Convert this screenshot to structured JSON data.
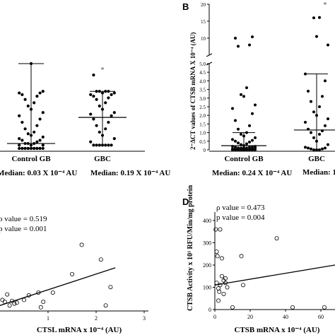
{
  "panels": {
    "b": {
      "letter": "B"
    },
    "d": {
      "letter": "D"
    }
  },
  "medians": {
    "a": "Median: 0.03 X 10⁻⁴ AU",
    "a_median_2": "Median: 0.19 X 10⁻⁴ AU",
    "b": "Median: 0.24 X 10⁻⁴ AU",
    "b_median_2": "Median: 1."
  },
  "stats": {
    "c_rho": "ρ value = 0.519",
    "c_p": "p value = 0.001",
    "d_rho": "ρ value = 0.473",
    "d_p": "p value = 0.004"
  },
  "chart_data": [
    {
      "id": "A",
      "type": "scatter",
      "categories": [
        "Control GB",
        "GBC"
      ],
      "series": [
        {
          "values": [
            [
              0.0,
              0.0,
              0.0,
              0.0,
              0.0,
              0.0,
              0.0,
              0.0,
              0.0,
              0.0,
              0.0,
              0.0,
              0.0,
              0.0,
              0.0,
              0.0,
              0.02,
              0.02,
              0.02,
              0.03,
              0.03,
              0.03,
              0.04,
              0.05,
              0.05,
              0.06,
              0.07,
              0.08,
              0.09,
              0.1,
              0.12,
              0.14,
              0.16,
              0.18,
              0.2,
              0.22,
              0.24,
              0.26,
              0.28,
              0.3,
              0.32,
              0.33,
              0.34,
              0.34,
              0.35,
              0.52
            ],
            [
              0.02,
              0.02,
              0.02,
              0.02,
              0.02,
              0.02,
              0.02,
              0.04,
              0.06,
              0.08,
              0.1,
              0.12,
              0.14,
              0.16,
              0.18,
              0.2,
              0.21,
              0.22,
              0.24,
              0.26,
              0.28,
              0.3,
              0.31,
              0.32,
              0.33,
              0.33,
              0.34,
              0.34,
              0.35,
              0.35,
              0.35,
              0.35,
              0.45
            ]
          ]
        }
      ],
      "median_bars": [
        0.03,
        0.19
      ],
      "whiskers": [
        [
          0.0,
          0.52
        ],
        [
          0.02,
          0.35
        ]
      ],
      "annotations": [
        "*"
      ]
    },
    {
      "id": "B",
      "type": "scatter",
      "ylabel": "2⁻ΔCT values of CTSB mRNA X 10⁻⁴ (AU)",
      "categories": [
        "Control GB",
        "GBC"
      ],
      "ylim_lower": [
        0,
        5
      ],
      "ylim_upper": [
        5,
        20
      ],
      "yticks_lower": [
        "0",
        "0.5",
        "1.0",
        "1.5",
        "2.0",
        "2.5",
        "3.0",
        "3.5",
        "4.0",
        "4.5",
        "5.0"
      ],
      "yticks_upper": [
        "10",
        "15",
        "20"
      ],
      "series": [
        {
          "values": [
            [
              0.0,
              0.0,
              0.0,
              0.0,
              0.0,
              0.0,
              0.0,
              0.0,
              0.0,
              0.0,
              0.0,
              0.0,
              0.0,
              0.05,
              0.05,
              0.05,
              0.05,
              0.1,
              0.1,
              0.1,
              0.1,
              0.1,
              0.15,
              0.15,
              0.15,
              0.2,
              0.2,
              0.25,
              0.3,
              0.35,
              0.4,
              0.45,
              0.5,
              0.55,
              0.6,
              0.7,
              0.8,
              0.9,
              1.0,
              1.2,
              1.4,
              1.7,
              2.1,
              2.4,
              2.6,
              3.1,
              3.2,
              3.6,
              7.6,
              8.0,
              10.0,
              10.4
            ],
            [
              0.0,
              0.0,
              0.0,
              0.05,
              0.05,
              0.1,
              0.1,
              0.15,
              0.3,
              0.5,
              0.7,
              0.9,
              1.0,
              1.1,
              1.2,
              1.4,
              1.6,
              1.8,
              2.0,
              2.2,
              2.5,
              2.8,
              3.1,
              3.4,
              4.0,
              4.4,
              8.0,
              10.5,
              16.0,
              16.1
            ]
          ]
        }
      ],
      "median_bars": [
        0.24,
        1.15
      ],
      "whiskers": [
        [
          0.0,
          1.0
        ],
        [
          0.0,
          4.4
        ]
      ],
      "annotations": [
        "*"
      ]
    },
    {
      "id": "C",
      "type": "scatter",
      "xlabel": "CTSL mRNA x 10⁻⁴ (AU)",
      "xticks": [
        "1",
        "2",
        "3"
      ],
      "xlim": [
        0,
        3
      ],
      "points": [
        [
          0.05,
          0.6
        ],
        [
          0.1,
          0.5
        ],
        [
          0.15,
          0.9
        ],
        [
          0.2,
          0.3
        ],
        [
          0.25,
          0.55
        ],
        [
          0.3,
          0.4
        ],
        [
          0.35,
          0.45
        ],
        [
          0.5,
          0.6
        ],
        [
          0.6,
          0.85
        ],
        [
          0.8,
          1.0
        ],
        [
          0.85,
          0.2
        ],
        [
          0.9,
          0.5
        ],
        [
          1.1,
          1.0
        ],
        [
          1.5,
          2.0
        ],
        [
          1.7,
          3.6
        ],
        [
          2.1,
          2.8
        ],
        [
          2.2,
          0.3
        ],
        [
          2.3,
          1.3
        ]
      ],
      "trend_line": {
        "x": [
          0,
          2.4
        ],
        "y": [
          0.3,
          2.35
        ]
      }
    },
    {
      "id": "D",
      "type": "scatter",
      "xlabel": "CTSB mRNA x 10⁻⁴ (AU)",
      "ylabel": "CTSB Activity x 10³ RFU/Min/mg protein",
      "xticks": [
        "0",
        "20",
        "40",
        "60"
      ],
      "yticks": [
        "0",
        "100",
        "200",
        "300",
        "400"
      ],
      "xlim": [
        0,
        68
      ],
      "ylim": [
        0,
        400
      ],
      "points": [
        [
          0.5,
          360
        ],
        [
          1,
          260
        ],
        [
          1,
          120
        ],
        [
          1.5,
          240
        ],
        [
          2,
          95
        ],
        [
          2,
          40
        ],
        [
          2.5,
          80
        ],
        [
          3,
          110
        ],
        [
          3,
          360
        ],
        [
          4,
          230
        ],
        [
          4,
          150
        ],
        [
          5,
          130
        ],
        [
          5,
          70
        ],
        [
          6,
          120
        ],
        [
          6,
          140
        ],
        [
          7,
          100
        ],
        [
          10,
          10
        ],
        [
          15,
          240
        ],
        [
          16,
          110
        ],
        [
          35,
          320
        ],
        [
          44,
          10
        ],
        [
          62,
          10
        ]
      ],
      "trend_line": {
        "x": [
          0,
          68
        ],
        "y": [
          110,
          200
        ]
      }
    }
  ]
}
